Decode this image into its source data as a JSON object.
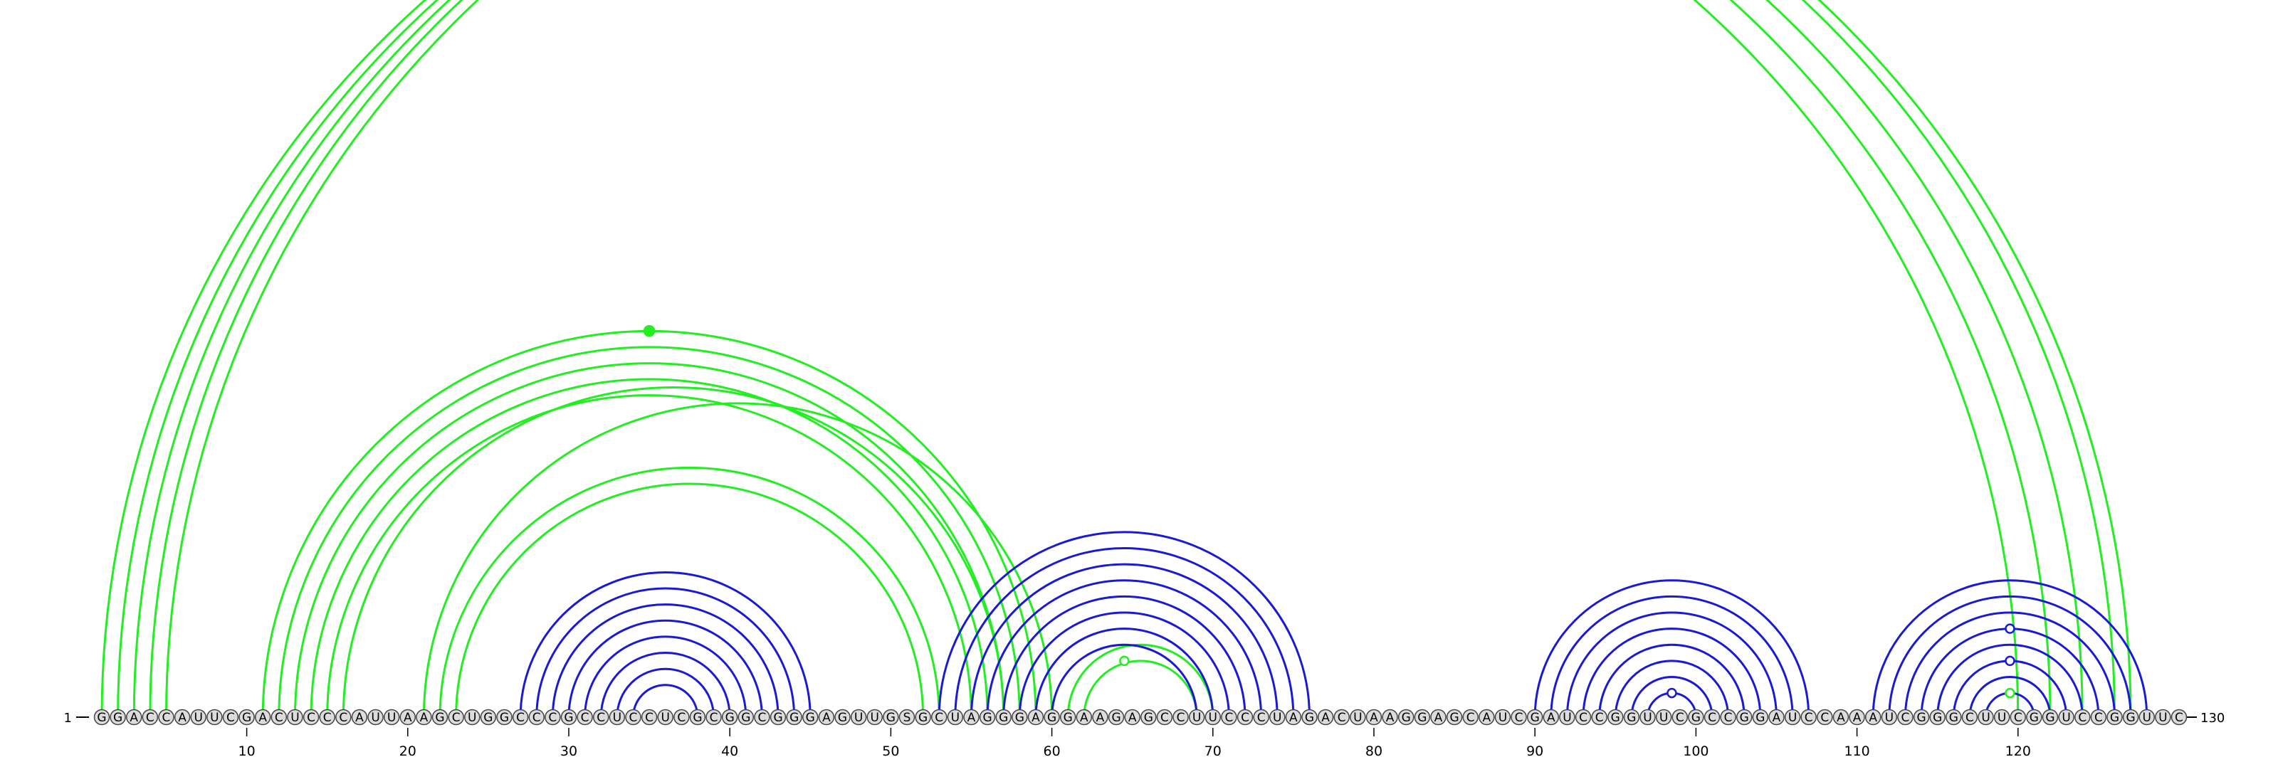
{
  "sequence": "GGACCAUUCGACUCCCAUUAAGCUGGCCCGCCUCCUCGCGGCGGGAGUUGSGCUAGGGAGGAAGAGCCUUCCCUAGACUAAGGAGCAUCGAUCCGGUUCGCCGGAUCCAAAUCGGGCUUCGGUCCGGUUC",
  "start_label": "1",
  "end_label": "130",
  "ticks": [
    "10",
    "20",
    "30",
    "40",
    "50",
    "60",
    "70",
    "80",
    "90",
    "100",
    "110",
    "120"
  ],
  "colors": {
    "green": "#22ee22",
    "blue": "#1a1ad6",
    "base_fill": "#dcdcdc",
    "base_stroke": "#444444"
  },
  "green_pairs": [
    [
      1,
      120
    ],
    [
      2,
      122
    ],
    [
      3,
      124
    ],
    [
      4,
      126
    ],
    [
      5,
      127
    ],
    [
      11,
      59
    ],
    [
      12,
      58
    ],
    [
      13,
      57
    ],
    [
      14,
      56
    ],
    [
      15,
      55
    ],
    [
      16,
      57
    ],
    [
      21,
      60
    ],
    [
      22,
      53
    ],
    [
      23,
      52
    ],
    [
      61,
      70
    ],
    [
      62,
      69
    ]
  ],
  "blue_pairs": [
    [
      27,
      45
    ],
    [
      28,
      44
    ],
    [
      29,
      43
    ],
    [
      30,
      42
    ],
    [
      31,
      41
    ],
    [
      32,
      40
    ],
    [
      33,
      39
    ],
    [
      34,
      38
    ],
    [
      53,
      76
    ],
    [
      54,
      75
    ],
    [
      55,
      74
    ],
    [
      56,
      73
    ],
    [
      57,
      72
    ],
    [
      58,
      71
    ],
    [
      59,
      70
    ],
    [
      60,
      69
    ],
    [
      90,
      107
    ],
    [
      91,
      106
    ],
    [
      92,
      105
    ],
    [
      93,
      104
    ],
    [
      94,
      103
    ],
    [
      95,
      102
    ],
    [
      96,
      101
    ],
    [
      97,
      100
    ],
    [
      111,
      128
    ],
    [
      112,
      127
    ],
    [
      113,
      126
    ],
    [
      114,
      125
    ],
    [
      115,
      124
    ],
    [
      116,
      123
    ],
    [
      117,
      122
    ],
    [
      118,
      121
    ]
  ],
  "green_markers": [
    {
      "i": 11,
      "j": 59,
      "type": "dot"
    },
    {
      "i": 61,
      "j": 68,
      "type": "circle"
    },
    {
      "i": 118,
      "j": 121,
      "type": "circle"
    }
  ],
  "blue_markers": [
    {
      "i": 97,
      "j": 100,
      "type": "circle"
    },
    {
      "i": 114,
      "j": 125,
      "type": "circle"
    },
    {
      "i": 116,
      "j": 123,
      "type": "circle"
    }
  ]
}
